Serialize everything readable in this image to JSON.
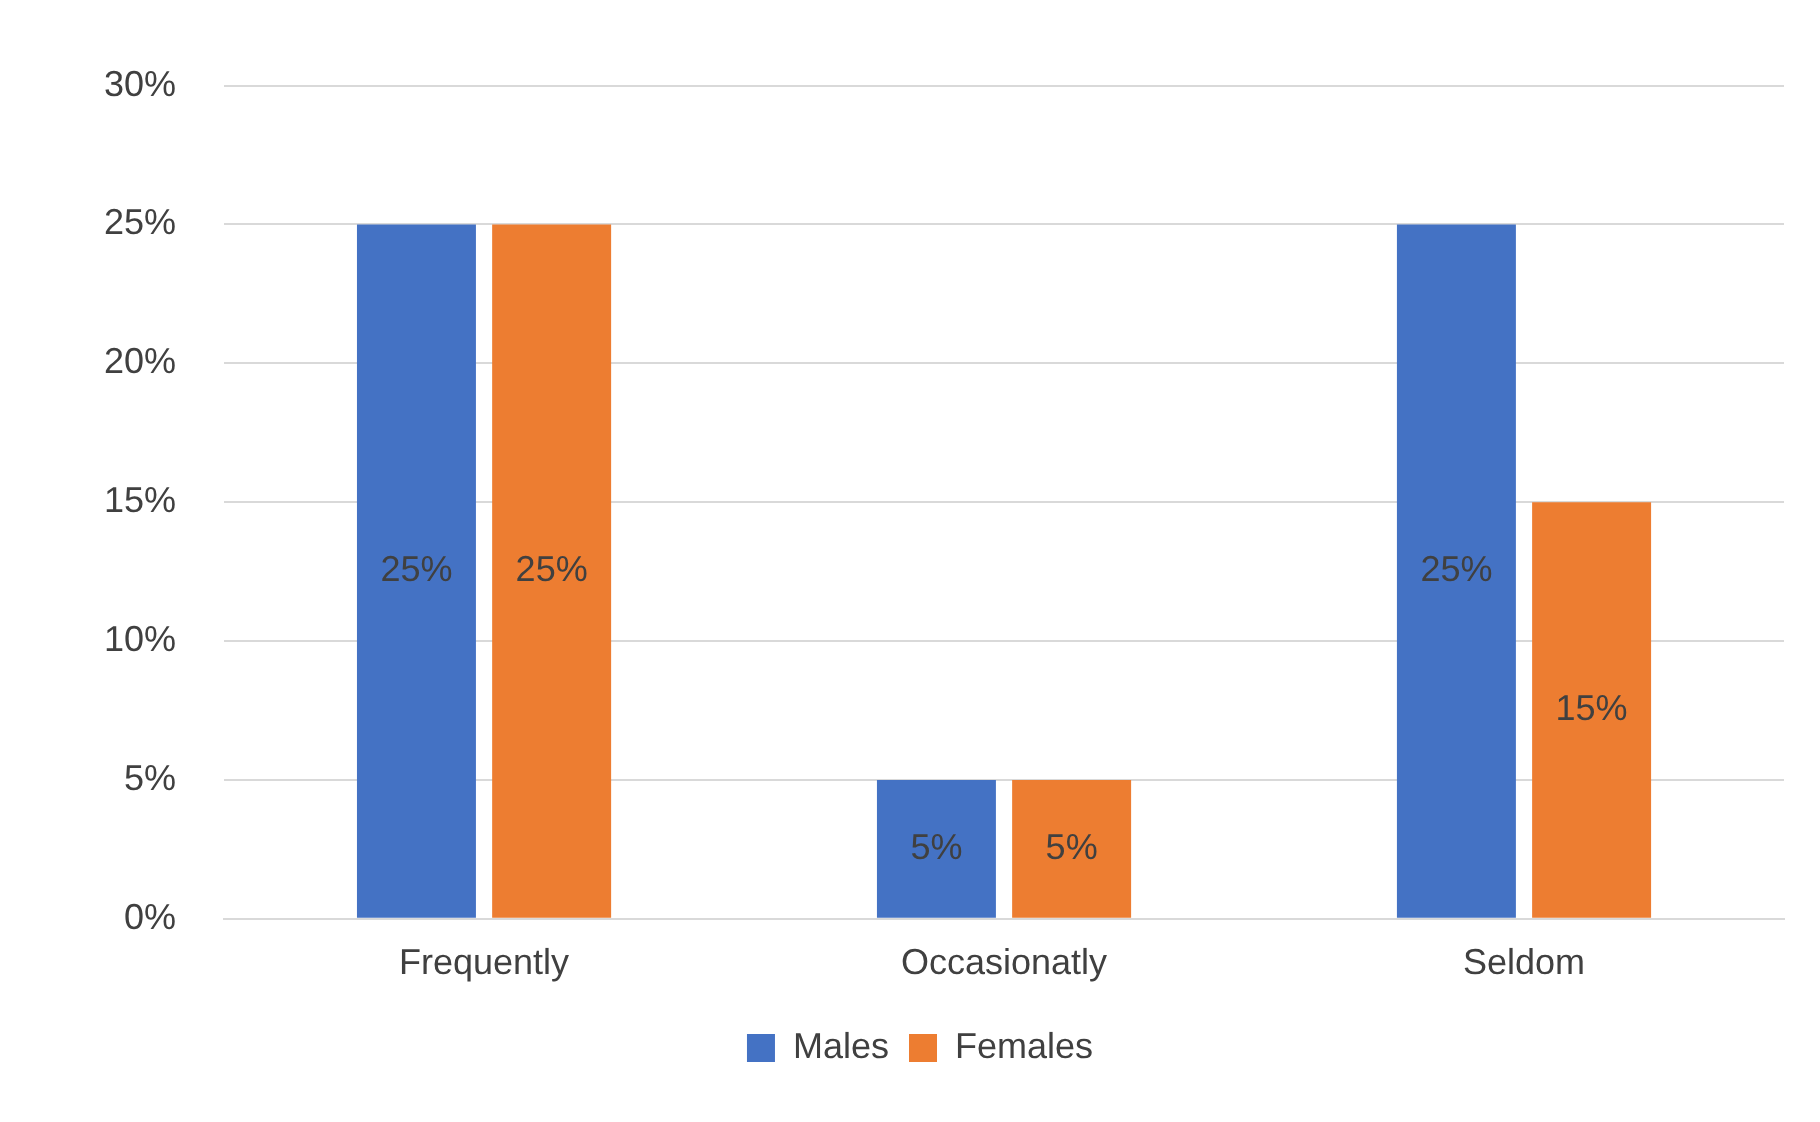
{
  "chart_data": {
    "type": "bar",
    "categories": [
      "Frequently",
      "Occasionatly",
      "Seldom"
    ],
    "series": [
      {
        "name": "Males",
        "color": "#4472c4",
        "values": [
          25,
          5,
          25
        ],
        "value_labels": [
          "25%",
          "5%",
          "25%"
        ]
      },
      {
        "name": "Females",
        "color": "#ed7d31",
        "values": [
          25,
          5,
          15
        ],
        "value_labels": [
          "25%",
          "5%",
          "15%"
        ]
      }
    ],
    "ylim": [
      0,
      30
    ],
    "yticks": [
      {
        "value": 0,
        "label": "0%"
      },
      {
        "value": 5,
        "label": "5%"
      },
      {
        "value": 10,
        "label": "10%"
      },
      {
        "value": 15,
        "label": "15%"
      },
      {
        "value": 20,
        "label": "20%"
      },
      {
        "value": 25,
        "label": "25%"
      },
      {
        "value": 30,
        "label": "30%"
      }
    ],
    "grid": "y",
    "legend": "bottom"
  }
}
